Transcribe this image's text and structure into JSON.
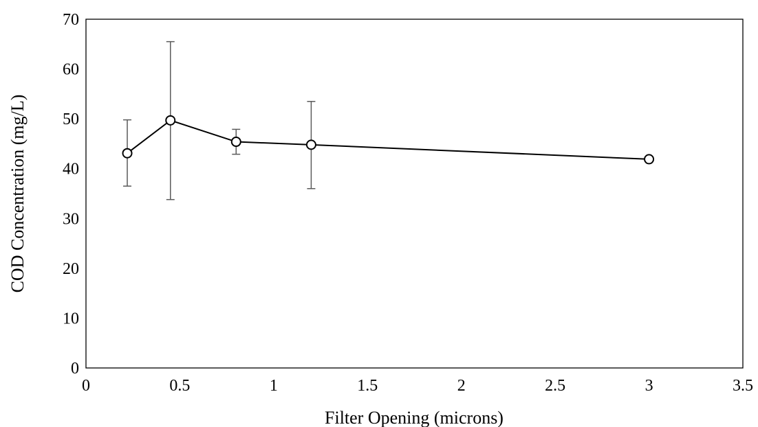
{
  "chart_data": {
    "type": "line",
    "title": "",
    "xlabel": "Filter Opening (microns)",
    "ylabel": "COD Concentration (mg/L)",
    "xlim": [
      0,
      3.5
    ],
    "ylim": [
      0,
      70
    ],
    "x_ticks": [
      0,
      0.5,
      1,
      1.5,
      2,
      2.5,
      3,
      3.5
    ],
    "x_tick_labels": [
      "0",
      "0.5",
      "1",
      "1.5",
      "2",
      "2.5",
      "3",
      "3.5"
    ],
    "y_ticks": [
      0,
      10,
      20,
      30,
      40,
      50,
      60,
      70
    ],
    "y_tick_labels": [
      "0",
      "10",
      "20",
      "30",
      "40",
      "50",
      "60",
      "70"
    ],
    "grid": false,
    "legend": "none",
    "series": [
      {
        "x": [
          0.22,
          0.45,
          0.8,
          1.2,
          3.0
        ],
        "y": [
          43.1,
          49.7,
          45.4,
          44.8,
          41.9
        ],
        "error_low": [
          36.5,
          33.8,
          42.9,
          36.0,
          null
        ],
        "error_high": [
          49.8,
          65.5,
          47.9,
          53.5,
          null
        ],
        "marker": "open-circle",
        "color": "#000000"
      }
    ]
  }
}
